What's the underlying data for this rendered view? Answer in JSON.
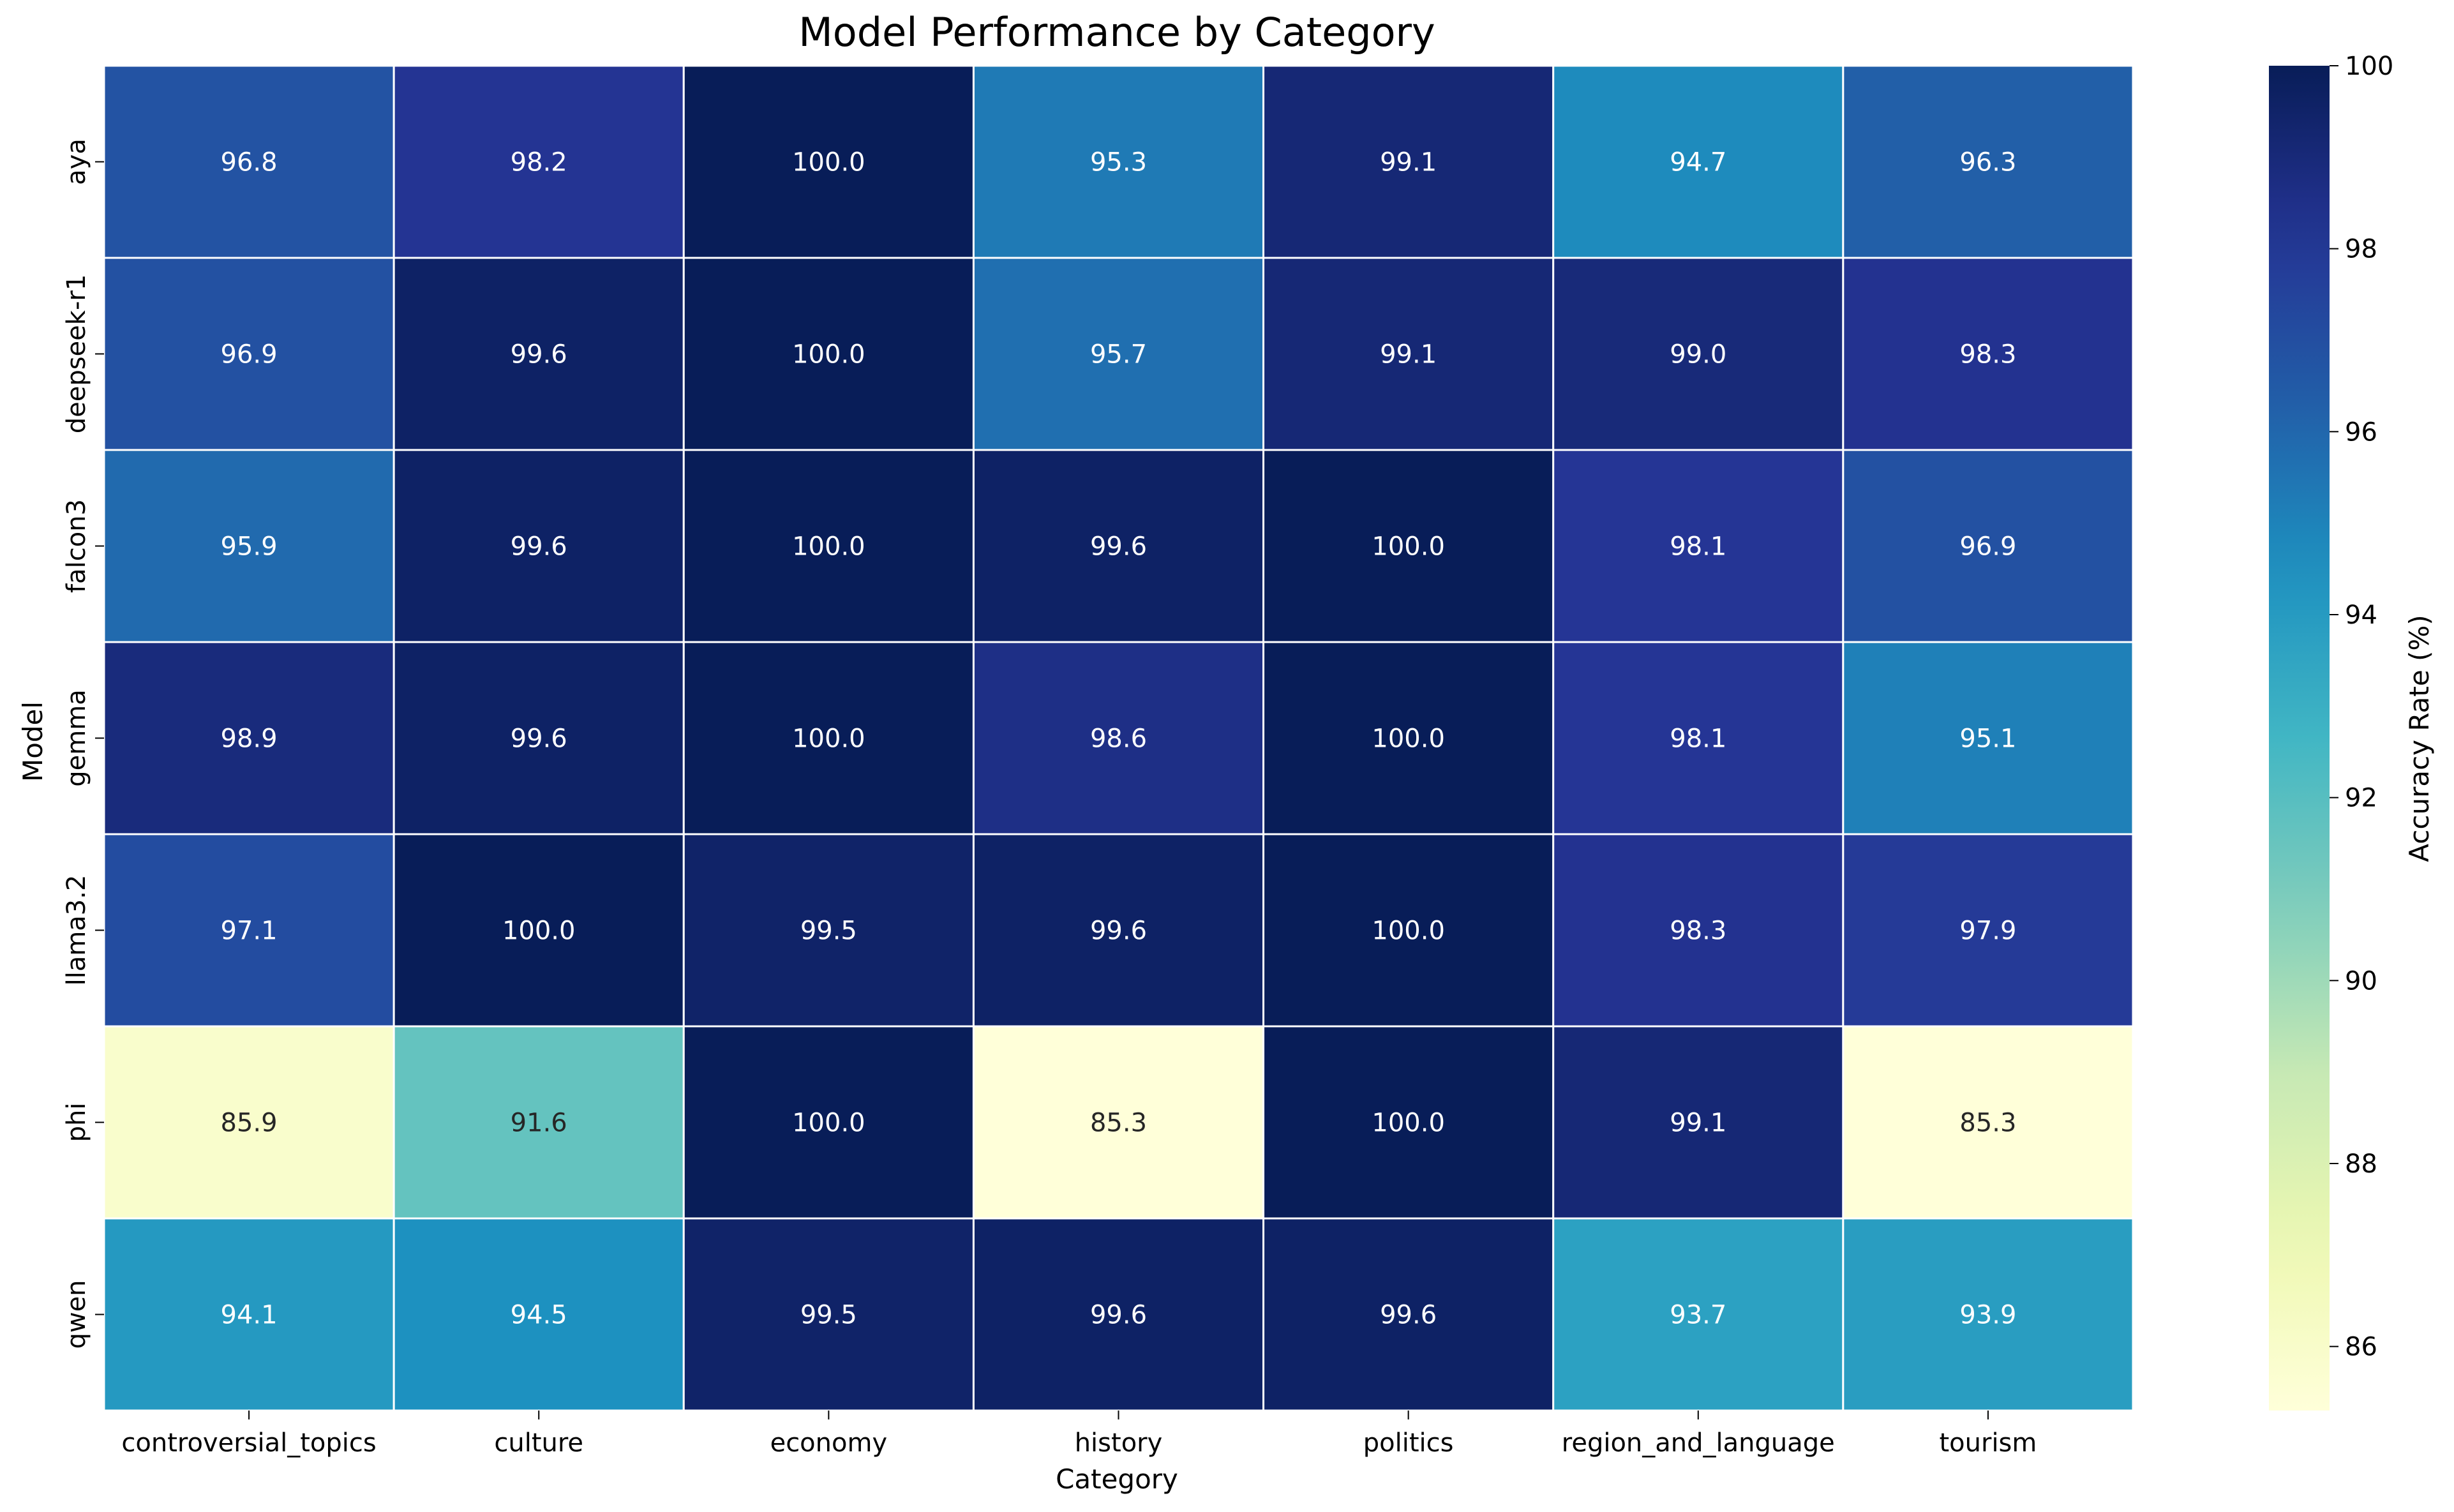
{
  "chart_data": {
    "type": "heatmap",
    "title": "Model Performance by Category",
    "xlabel": "Category",
    "ylabel": "Model",
    "categories": [
      "controversial_topics",
      "culture",
      "economy",
      "history",
      "politics",
      "region_and_language",
      "tourism"
    ],
    "models": [
      "aya",
      "deepseek-r1",
      "falcon3",
      "gemma",
      "llama3.2",
      "phi",
      "qwen"
    ],
    "values": [
      [
        96.8,
        98.2,
        100.0,
        95.3,
        99.1,
        94.7,
        96.3
      ],
      [
        96.9,
        99.6,
        100.0,
        95.7,
        99.1,
        99.0,
        98.3
      ],
      [
        95.9,
        99.6,
        100.0,
        99.6,
        100.0,
        98.1,
        96.9
      ],
      [
        98.9,
        99.6,
        100.0,
        98.6,
        100.0,
        98.1,
        95.1
      ],
      [
        97.1,
        100.0,
        99.5,
        99.6,
        100.0,
        98.3,
        97.9
      ],
      [
        85.9,
        91.6,
        100.0,
        85.3,
        100.0,
        99.1,
        85.3
      ],
      [
        94.1,
        94.5,
        99.5,
        99.6,
        99.6,
        93.7,
        93.9
      ]
    ],
    "colorbar": {
      "label": "Accuracy Rate (%)",
      "min": 85.3,
      "max": 100.0,
      "ticks": [
        86,
        88,
        90,
        92,
        94,
        96,
        98,
        100
      ],
      "colormap": "YlGnBu"
    }
  }
}
